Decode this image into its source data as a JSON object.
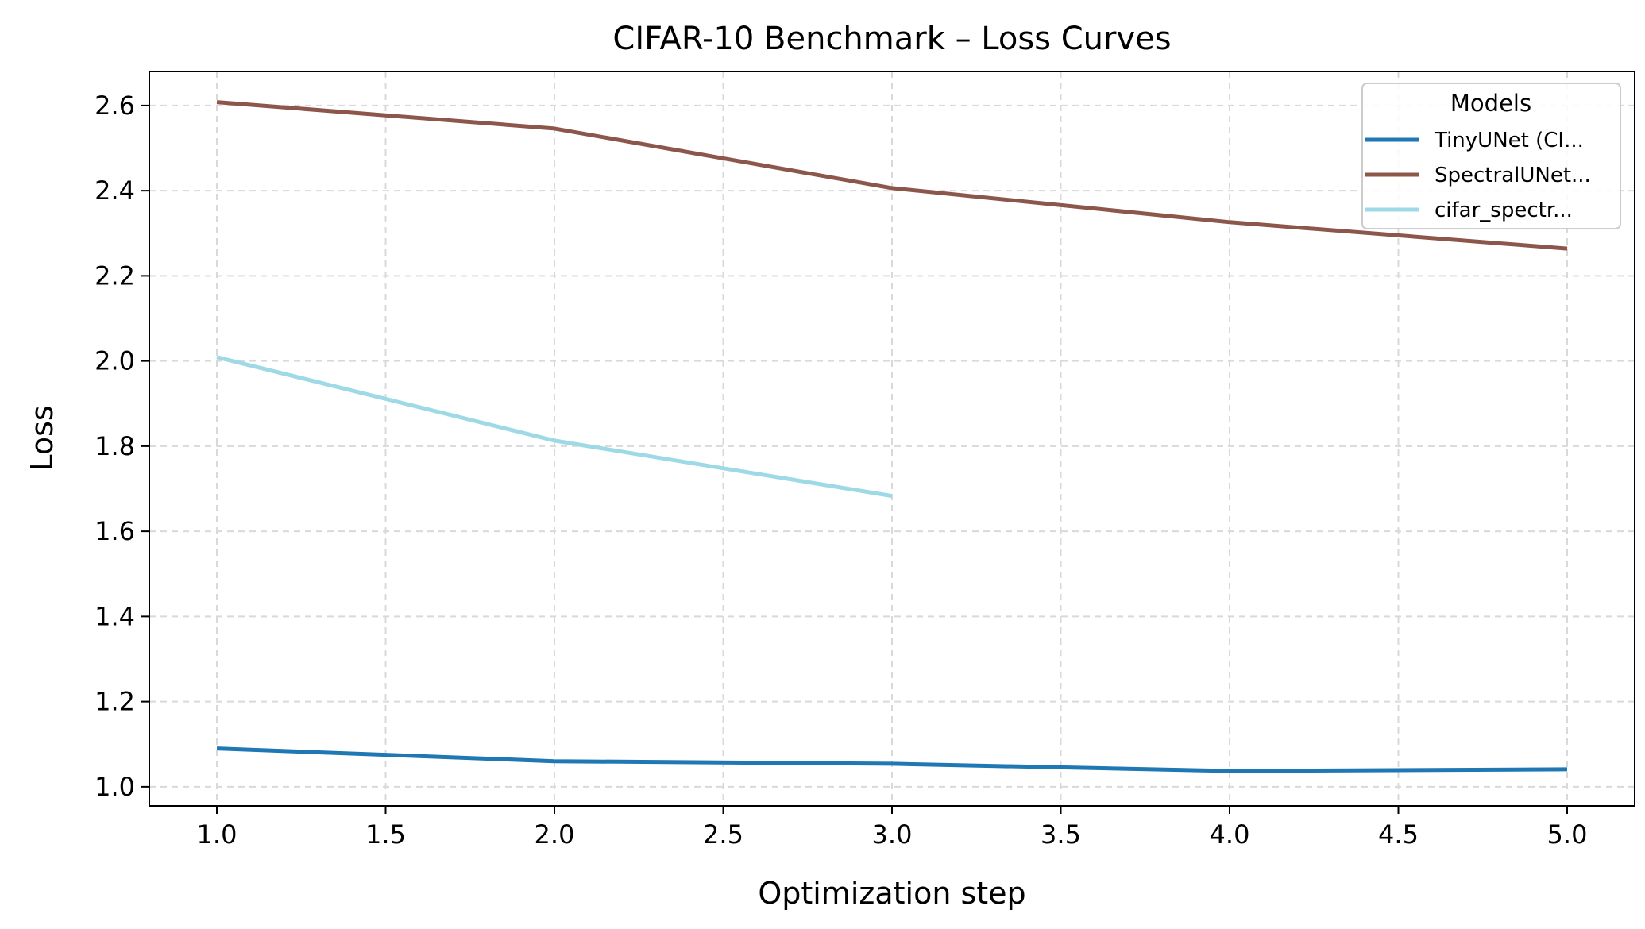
{
  "chart_data": {
    "type": "line",
    "title": "CIFAR-10 Benchmark – Loss Curves",
    "xlabel": "Optimization step",
    "ylabel": "Loss",
    "xlim": [
      0.8,
      5.2
    ],
    "ylim": [
      0.955,
      2.68
    ],
    "xticks": [
      1.0,
      1.5,
      2.0,
      2.5,
      3.0,
      3.5,
      4.0,
      4.5,
      5.0
    ],
    "xtick_labels": [
      "1.0",
      "1.5",
      "2.0",
      "2.5",
      "3.0",
      "3.5",
      "4.0",
      "4.5",
      "5.0"
    ],
    "yticks": [
      1.0,
      1.2,
      1.4,
      1.6,
      1.8,
      2.0,
      2.2,
      2.4,
      2.6
    ],
    "ytick_labels": [
      "1.0",
      "1.2",
      "1.4",
      "1.6",
      "1.8",
      "2.0",
      "2.2",
      "2.4",
      "2.6"
    ],
    "grid": true,
    "legend": {
      "title": "Models",
      "placement": "top-right"
    },
    "series": [
      {
        "name": "TinyUNet (CI...",
        "color": "#1f77b4",
        "x": [
          1,
          2,
          3,
          4,
          5
        ],
        "y": [
          1.09,
          1.06,
          1.054,
          1.037,
          1.041
        ]
      },
      {
        "name": "SpectralUNet...",
        "color": "#8c564b",
        "x": [
          1,
          2,
          3,
          4,
          5
        ],
        "y": [
          2.608,
          2.546,
          2.406,
          2.326,
          2.264
        ]
      },
      {
        "name": "cifar_spectr...",
        "color": "#9edae5",
        "x": [
          1,
          2,
          3
        ],
        "y": [
          2.009,
          1.813,
          1.683
        ]
      }
    ]
  }
}
